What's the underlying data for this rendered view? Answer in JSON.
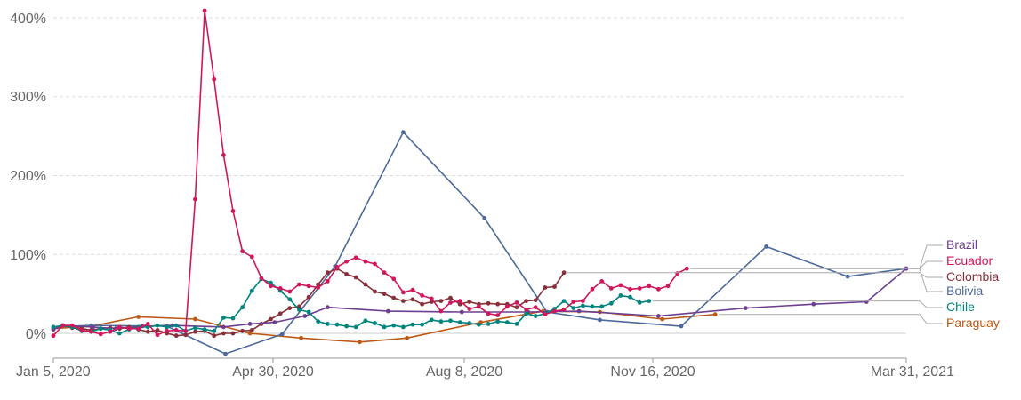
{
  "chart_data": {
    "type": "line",
    "title": "",
    "xlabel": "",
    "ylabel": "",
    "x_ticks": [
      "Jan 5, 2020",
      "Apr 30, 2020",
      "Aug 8, 2020",
      "Nov 16, 2020",
      "Mar 31, 2021"
    ],
    "y_ticks": [
      "0%",
      "100%",
      "200%",
      "300%",
      "400%"
    ],
    "y_tick_values": [
      0,
      100,
      200,
      300,
      400
    ],
    "xlim": [
      "2020-01-05",
      "2021-03-31"
    ],
    "ylim": [
      -25,
      410
    ],
    "grid": "horizontal dashed",
    "legend_position": "right",
    "series": [
      {
        "name": "Brazil",
        "color": "#6d3e91",
        "points": [
          [
            "2020-01-05",
            5
          ],
          [
            "2020-01-10",
            10
          ],
          [
            "2020-01-26",
            8
          ],
          [
            "2020-02-07",
            6
          ],
          [
            "2020-02-21",
            9
          ],
          [
            "2020-03-08",
            10
          ],
          [
            "2020-04-04",
            8
          ],
          [
            "2020-04-18",
            12
          ],
          [
            "2020-05-01",
            14
          ],
          [
            "2020-05-17",
            22
          ],
          [
            "2020-05-29",
            33
          ],
          [
            "2020-06-30",
            28
          ],
          [
            "2020-08-08",
            27
          ],
          [
            "2020-09-12",
            27
          ],
          [
            "2020-10-09",
            28
          ],
          [
            "2020-11-20",
            22
          ],
          [
            "2021-01-05",
            32
          ],
          [
            "2021-02-10",
            37
          ],
          [
            "2021-03-10",
            40
          ],
          [
            "2021-03-31",
            82
          ]
        ]
      },
      {
        "name": "Ecuador",
        "color": "#d0175c",
        "points": [
          [
            "2020-01-05",
            -3
          ],
          [
            "2020-01-10",
            10
          ],
          [
            "2020-01-15",
            10
          ],
          [
            "2020-01-20",
            4
          ],
          [
            "2020-01-25",
            2
          ],
          [
            "2020-01-30",
            -1
          ],
          [
            "2020-02-04",
            2
          ],
          [
            "2020-02-09",
            8
          ],
          [
            "2020-02-14",
            6
          ],
          [
            "2020-02-19",
            6
          ],
          [
            "2020-02-24",
            12
          ],
          [
            "2020-02-29",
            -2
          ],
          [
            "2020-03-05",
            3
          ],
          [
            "2020-03-10",
            4
          ],
          [
            "2020-03-15",
            3
          ],
          [
            "2020-03-20",
            170
          ],
          [
            "2020-03-25",
            409
          ],
          [
            "2020-03-30",
            322
          ],
          [
            "2020-04-04",
            226
          ],
          [
            "2020-04-09",
            155
          ],
          [
            "2020-04-14",
            104
          ],
          [
            "2020-04-19",
            97
          ],
          [
            "2020-04-24",
            70
          ],
          [
            "2020-04-29",
            60
          ],
          [
            "2020-05-04",
            57
          ],
          [
            "2020-05-09",
            53
          ],
          [
            "2020-05-14",
            62
          ],
          [
            "2020-05-19",
            60
          ],
          [
            "2020-05-24",
            58
          ],
          [
            "2020-05-29",
            66
          ],
          [
            "2020-06-03",
            84
          ],
          [
            "2020-06-08",
            91
          ],
          [
            "2020-06-13",
            96
          ],
          [
            "2020-06-18",
            91
          ],
          [
            "2020-06-23",
            88
          ],
          [
            "2020-06-28",
            77
          ],
          [
            "2020-07-03",
            69
          ],
          [
            "2020-07-08",
            52
          ],
          [
            "2020-07-13",
            55
          ],
          [
            "2020-07-18",
            48
          ],
          [
            "2020-07-23",
            44
          ],
          [
            "2020-07-28",
            28
          ],
          [
            "2020-08-02",
            39
          ],
          [
            "2020-08-07",
            41
          ],
          [
            "2020-08-12",
            31
          ],
          [
            "2020-08-17",
            34
          ],
          [
            "2020-08-22",
            25
          ],
          [
            "2020-08-27",
            23
          ],
          [
            "2020-09-01",
            34
          ],
          [
            "2020-09-06",
            39
          ],
          [
            "2020-09-11",
            30
          ],
          [
            "2020-09-16",
            33
          ],
          [
            "2020-09-21",
            24
          ],
          [
            "2020-09-26",
            28
          ],
          [
            "2020-10-01",
            30
          ],
          [
            "2020-10-06",
            40
          ],
          [
            "2020-10-11",
            41
          ],
          [
            "2020-10-16",
            56
          ],
          [
            "2020-10-21",
            66
          ],
          [
            "2020-10-26",
            57
          ],
          [
            "2020-10-31",
            61
          ],
          [
            "2020-11-05",
            56
          ],
          [
            "2020-11-10",
            57
          ],
          [
            "2020-11-15",
            60
          ],
          [
            "2020-11-20",
            56
          ],
          [
            "2020-11-25",
            60
          ],
          [
            "2020-11-30",
            76
          ],
          [
            "2020-12-05",
            82
          ]
        ]
      },
      {
        "name": "Colombia",
        "color": "#883039",
        "points": [
          [
            "2020-01-05",
            5
          ],
          [
            "2020-01-10",
            10
          ],
          [
            "2020-01-15",
            7
          ],
          [
            "2020-01-20",
            6
          ],
          [
            "2020-01-25",
            4
          ],
          [
            "2020-01-30",
            6
          ],
          [
            "2020-02-04",
            7
          ],
          [
            "2020-02-09",
            6
          ],
          [
            "2020-02-14",
            8
          ],
          [
            "2020-02-19",
            5
          ],
          [
            "2020-02-24",
            2
          ],
          [
            "2020-02-29",
            4
          ],
          [
            "2020-03-05",
            0
          ],
          [
            "2020-03-10",
            -3
          ],
          [
            "2020-03-15",
            -2
          ],
          [
            "2020-03-20",
            2
          ],
          [
            "2020-03-25",
            3
          ],
          [
            "2020-03-30",
            -3
          ],
          [
            "2020-04-04",
            0
          ],
          [
            "2020-04-09",
            0
          ],
          [
            "2020-04-14",
            3
          ],
          [
            "2020-04-19",
            4
          ],
          [
            "2020-04-24",
            12
          ],
          [
            "2020-04-29",
            18
          ],
          [
            "2020-05-04",
            25
          ],
          [
            "2020-05-09",
            32
          ],
          [
            "2020-05-14",
            34
          ],
          [
            "2020-05-19",
            46
          ],
          [
            "2020-05-24",
            62
          ],
          [
            "2020-05-29",
            77
          ],
          [
            "2020-06-03",
            82
          ],
          [
            "2020-06-08",
            75
          ],
          [
            "2020-06-13",
            71
          ],
          [
            "2020-06-18",
            62
          ],
          [
            "2020-06-23",
            53
          ],
          [
            "2020-06-28",
            50
          ],
          [
            "2020-07-03",
            45
          ],
          [
            "2020-07-08",
            41
          ],
          [
            "2020-07-13",
            43
          ],
          [
            "2020-07-18",
            37
          ],
          [
            "2020-07-23",
            40
          ],
          [
            "2020-07-28",
            41
          ],
          [
            "2020-08-02",
            45
          ],
          [
            "2020-08-07",
            37
          ],
          [
            "2020-08-12",
            40
          ],
          [
            "2020-08-17",
            37
          ],
          [
            "2020-08-22",
            38
          ],
          [
            "2020-08-27",
            37
          ],
          [
            "2020-09-01",
            37
          ],
          [
            "2020-09-06",
            33
          ],
          [
            "2020-09-11",
            41
          ],
          [
            "2020-09-16",
            42
          ],
          [
            "2020-09-21",
            58
          ],
          [
            "2020-09-26",
            59
          ],
          [
            "2020-10-01",
            77
          ]
        ]
      },
      {
        "name": "Bolivia",
        "color": "#4c6a9c",
        "points": [
          [
            "2020-01-05",
            8
          ],
          [
            "2020-01-25",
            10
          ],
          [
            "2020-03-05",
            9
          ],
          [
            "2020-04-05",
            -26
          ],
          [
            "2020-05-05",
            -1
          ],
          [
            "2020-06-02",
            85
          ],
          [
            "2020-07-08",
            255
          ],
          [
            "2020-08-20",
            146
          ],
          [
            "2020-09-22",
            27
          ],
          [
            "2020-10-20",
            17
          ],
          [
            "2020-12-02",
            9
          ],
          [
            "2021-01-16",
            110
          ],
          [
            "2021-02-28",
            72
          ],
          [
            "2021-03-31",
            82
          ]
        ]
      },
      {
        "name": "Chile",
        "color": "#00847e",
        "points": [
          [
            "2020-01-05",
            8
          ],
          [
            "2020-01-10",
            10
          ],
          [
            "2020-01-15",
            8
          ],
          [
            "2020-01-20",
            3
          ],
          [
            "2020-01-25",
            2
          ],
          [
            "2020-01-30",
            6
          ],
          [
            "2020-02-04",
            4
          ],
          [
            "2020-02-09",
            0
          ],
          [
            "2020-02-14",
            5
          ],
          [
            "2020-02-19",
            8
          ],
          [
            "2020-02-24",
            8
          ],
          [
            "2020-02-29",
            10
          ],
          [
            "2020-03-05",
            8
          ],
          [
            "2020-03-10",
            10
          ],
          [
            "2020-03-15",
            3
          ],
          [
            "2020-03-20",
            7
          ],
          [
            "2020-03-25",
            5
          ],
          [
            "2020-03-30",
            3
          ],
          [
            "2020-04-04",
            20
          ],
          [
            "2020-04-09",
            19
          ],
          [
            "2020-04-14",
            33
          ],
          [
            "2020-04-19",
            54
          ],
          [
            "2020-04-24",
            69
          ],
          [
            "2020-04-29",
            64
          ],
          [
            "2020-05-04",
            54
          ],
          [
            "2020-05-09",
            43
          ],
          [
            "2020-05-14",
            30
          ],
          [
            "2020-05-19",
            27
          ],
          [
            "2020-05-24",
            15
          ],
          [
            "2020-05-29",
            12
          ],
          [
            "2020-06-03",
            11
          ],
          [
            "2020-06-08",
            9
          ],
          [
            "2020-06-13",
            8
          ],
          [
            "2020-06-18",
            16
          ],
          [
            "2020-06-23",
            13
          ],
          [
            "2020-06-28",
            8
          ],
          [
            "2020-07-03",
            10
          ],
          [
            "2020-07-08",
            8
          ],
          [
            "2020-07-13",
            11
          ],
          [
            "2020-07-18",
            11
          ],
          [
            "2020-07-23",
            17
          ],
          [
            "2020-07-28",
            15
          ],
          [
            "2020-08-02",
            16
          ],
          [
            "2020-08-07",
            14
          ],
          [
            "2020-08-12",
            13
          ],
          [
            "2020-08-17",
            11
          ],
          [
            "2020-08-22",
            12
          ],
          [
            "2020-08-27",
            15
          ],
          [
            "2020-09-01",
            14
          ],
          [
            "2020-09-06",
            12
          ],
          [
            "2020-09-11",
            25
          ],
          [
            "2020-09-16",
            22
          ],
          [
            "2020-09-21",
            25
          ],
          [
            "2020-09-26",
            31
          ],
          [
            "2020-10-01",
            41
          ],
          [
            "2020-10-06",
            32
          ],
          [
            "2020-10-11",
            35
          ],
          [
            "2020-10-16",
            34
          ],
          [
            "2020-10-21",
            34
          ],
          [
            "2020-10-26",
            38
          ],
          [
            "2020-10-31",
            48
          ],
          [
            "2020-11-05",
            46
          ],
          [
            "2020-11-10",
            39
          ],
          [
            "2020-11-15",
            41
          ]
        ]
      },
      {
        "name": "Paraguay",
        "color": "#be5915",
        "points": [
          [
            "2020-01-05",
            6
          ],
          [
            "2020-01-25",
            9
          ],
          [
            "2020-02-19",
            21
          ],
          [
            "2020-03-20",
            18
          ],
          [
            "2020-04-18",
            0
          ],
          [
            "2020-05-15",
            -6
          ],
          [
            "2020-06-15",
            -11
          ],
          [
            "2020-07-10",
            -6
          ],
          [
            "2020-08-18",
            14
          ],
          [
            "2020-09-20",
            28
          ],
          [
            "2020-10-20",
            27
          ],
          [
            "2020-11-22",
            18
          ],
          [
            "2020-12-20",
            24
          ]
        ]
      }
    ]
  }
}
